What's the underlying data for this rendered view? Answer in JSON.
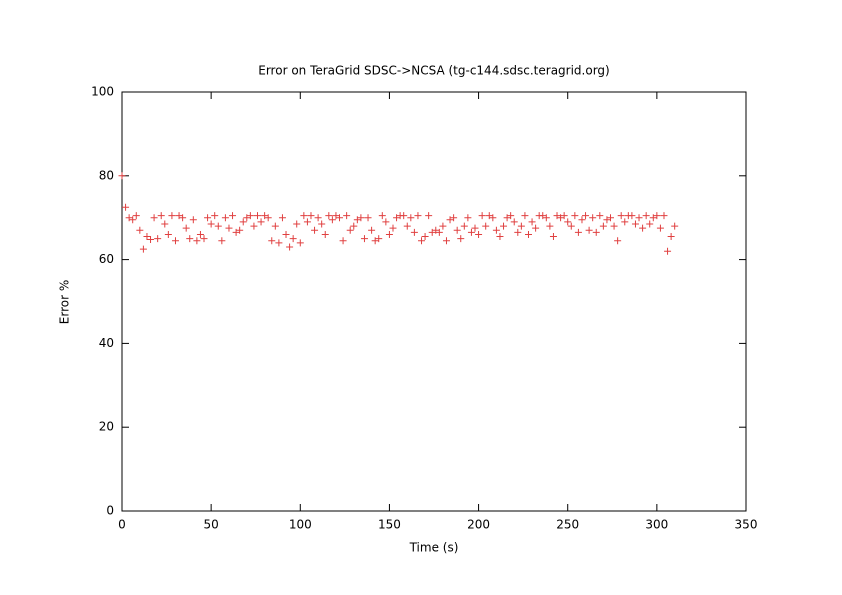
{
  "chart_data": {
    "type": "scatter",
    "title": "Error on TeraGrid SDSC->NCSA (tg-c144.sdsc.teragrid.org)",
    "x_label": "Time (s)",
    "y_label": "Error %",
    "xlim": [
      0,
      350
    ],
    "ylim": [
      0,
      100
    ],
    "xticks": [
      0,
      50,
      100,
      150,
      200,
      250,
      300,
      350
    ],
    "yticks": [
      0,
      20,
      40,
      60,
      80,
      100
    ],
    "color": "#e04040",
    "x": [
      0,
      2,
      4,
      6,
      8,
      10,
      12,
      14,
      16,
      18,
      20,
      22,
      24,
      26,
      28,
      30,
      32,
      34,
      36,
      38,
      40,
      42,
      44,
      46,
      48,
      50,
      52,
      54,
      56,
      58,
      60,
      62,
      64,
      66,
      68,
      70,
      72,
      74,
      76,
      78,
      80,
      82,
      84,
      86,
      88,
      90,
      92,
      94,
      96,
      98,
      100,
      102,
      104,
      106,
      108,
      110,
      112,
      114,
      116,
      118,
      120,
      122,
      124,
      126,
      128,
      130,
      132,
      134,
      136,
      138,
      140,
      142,
      144,
      146,
      148,
      150,
      152,
      154,
      156,
      158,
      160,
      162,
      164,
      166,
      168,
      170,
      172,
      174,
      176,
      178,
      180,
      182,
      184,
      186,
      188,
      190,
      192,
      194,
      196,
      198,
      200,
      202,
      204,
      206,
      208,
      210,
      212,
      214,
      216,
      218,
      220,
      222,
      224,
      226,
      228,
      230,
      232,
      234,
      236,
      238,
      240,
      242,
      244,
      246,
      248,
      250,
      252,
      254,
      256,
      258,
      260,
      262,
      264,
      266,
      268,
      270,
      272,
      274,
      276,
      278,
      280,
      282,
      284,
      286,
      288,
      290,
      292,
      294,
      296,
      298,
      300,
      302,
      304,
      306,
      308,
      310
    ],
    "values": [
      80,
      72.5,
      70,
      69.5,
      70.5,
      67,
      62.5,
      65.5,
      64.8,
      70,
      65,
      70.5,
      68.5,
      66,
      70.5,
      64.5,
      70.5,
      70,
      67.5,
      65,
      69.5,
      64.5,
      66,
      65,
      70,
      68.5,
      70.5,
      68,
      64.5,
      70,
      67.5,
      70.5,
      66.5,
      67,
      69,
      70,
      70.5,
      68,
      70.5,
      69,
      70.5,
      70,
      64.5,
      68,
      64,
      70,
      66,
      63,
      65,
      68.5,
      64,
      70.5,
      69,
      70.5,
      67,
      70,
      68.5,
      66,
      70.5,
      69.5,
      70.5,
      70,
      64.5,
      70.5,
      67,
      68,
      69.5,
      70,
      65,
      70,
      67,
      64.5,
      65,
      70.5,
      69,
      66,
      67.5,
      70,
      70.5,
      70.5,
      68,
      70,
      66.5,
      70.5,
      64.5,
      65.5,
      70.5,
      66.5,
      67,
      66.5,
      68,
      64.5,
      69.5,
      70,
      67,
      65,
      68,
      70,
      66.5,
      67.5,
      66,
      70.5,
      68,
      70.5,
      70,
      67,
      65.5,
      68,
      70,
      70.5,
      69,
      66.5,
      68,
      70.5,
      66,
      69,
      67.5,
      70.5,
      70.5,
      70,
      68,
      65.5,
      70.5,
      70,
      70.5,
      69,
      68,
      70.5,
      66.5,
      69.5,
      70.5,
      67,
      70,
      66.5,
      70.5,
      68,
      69.5,
      70,
      68,
      64.5,
      70.5,
      69,
      70.5,
      70.5,
      68.5,
      70,
      67.5,
      70.5,
      68.5,
      70,
      70.5,
      67.5,
      70.5,
      62,
      65.5,
      68
    ]
  }
}
